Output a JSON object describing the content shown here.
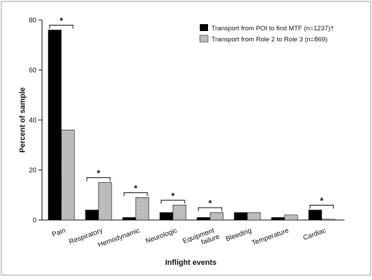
{
  "chart_data": {
    "type": "bar",
    "title": "",
    "xlabel": "Inflight events",
    "ylabel": "Percent of sample",
    "ylim": [
      0,
      80
    ],
    "yticks": [
      0,
      20,
      40,
      60,
      80
    ],
    "grid": false,
    "legend_position": "top-right",
    "categories": [
      "Pain",
      "Respiratory",
      "Hemodynamic",
      "Neurologic",
      "Equipment failure",
      "Bleeding",
      "Temperature",
      "Cardiac"
    ],
    "series": [
      {
        "name": "Transport from POI to first MTF (n=1237)†",
        "color": "#000000",
        "values": [
          76,
          4,
          1,
          3,
          1,
          3,
          1,
          4
        ]
      },
      {
        "name": "Transport from Role 2 to Role 3 (n=869)",
        "color": "#b3b3b3",
        "values": [
          36,
          15,
          9,
          6,
          3,
          3,
          2,
          0.3
        ]
      }
    ],
    "significance": {
      "marker": "*",
      "categories": [
        "Pain",
        "Respiratory",
        "Hemodynamic",
        "Neurologic",
        "Equipment failure",
        "Cardiac"
      ]
    }
  }
}
